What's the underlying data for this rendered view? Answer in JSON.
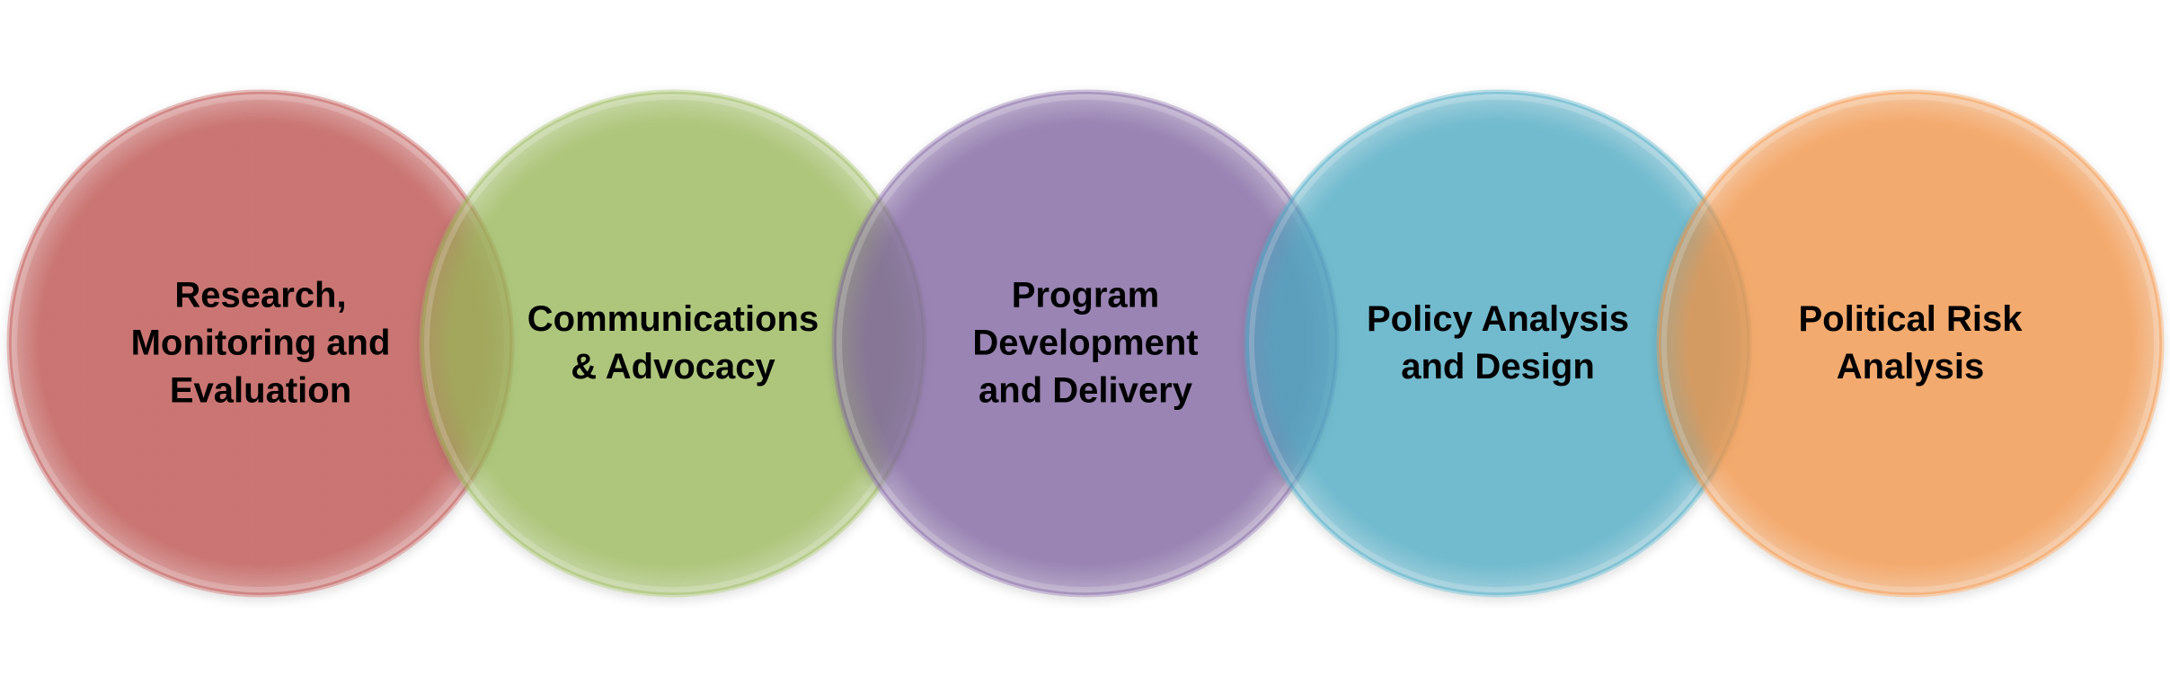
{
  "diagram": {
    "circles": [
      {
        "label": "Research,\nMonitoring and\nEvaluation",
        "color": "#c0504d"
      },
      {
        "label": "Communications\n& Advocacy",
        "color": "#9bbb59"
      },
      {
        "label": "Program\nDevelopment\nand Delivery",
        "color": "#8064a2"
      },
      {
        "label": "Policy Analysis\nand Design",
        "color": "#4bacc6"
      },
      {
        "label": "Political Risk\nAnalysis",
        "color": "#f79646"
      }
    ]
  }
}
